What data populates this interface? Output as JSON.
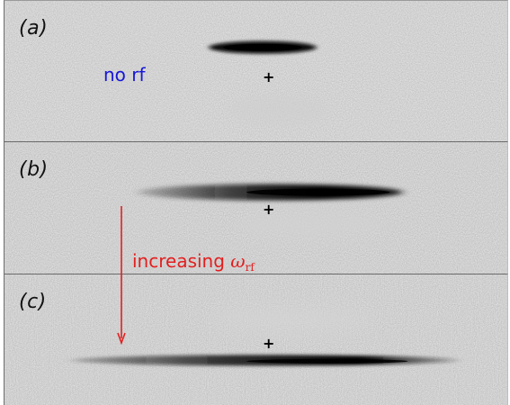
{
  "panels": [
    {
      "label": "(a)",
      "annotation": "no rf"
    },
    {
      "label": "(b)"
    },
    {
      "label": "(c)"
    }
  ],
  "center_marker": "+",
  "arrow": {
    "text_prefix": "increasing ",
    "symbol": "ω",
    "subscript": "rf",
    "color": "#e21f1f"
  },
  "colors": {
    "no_rf_text": "#1616d8",
    "background": "#ececec",
    "cloud": "#0a0a0a"
  }
}
